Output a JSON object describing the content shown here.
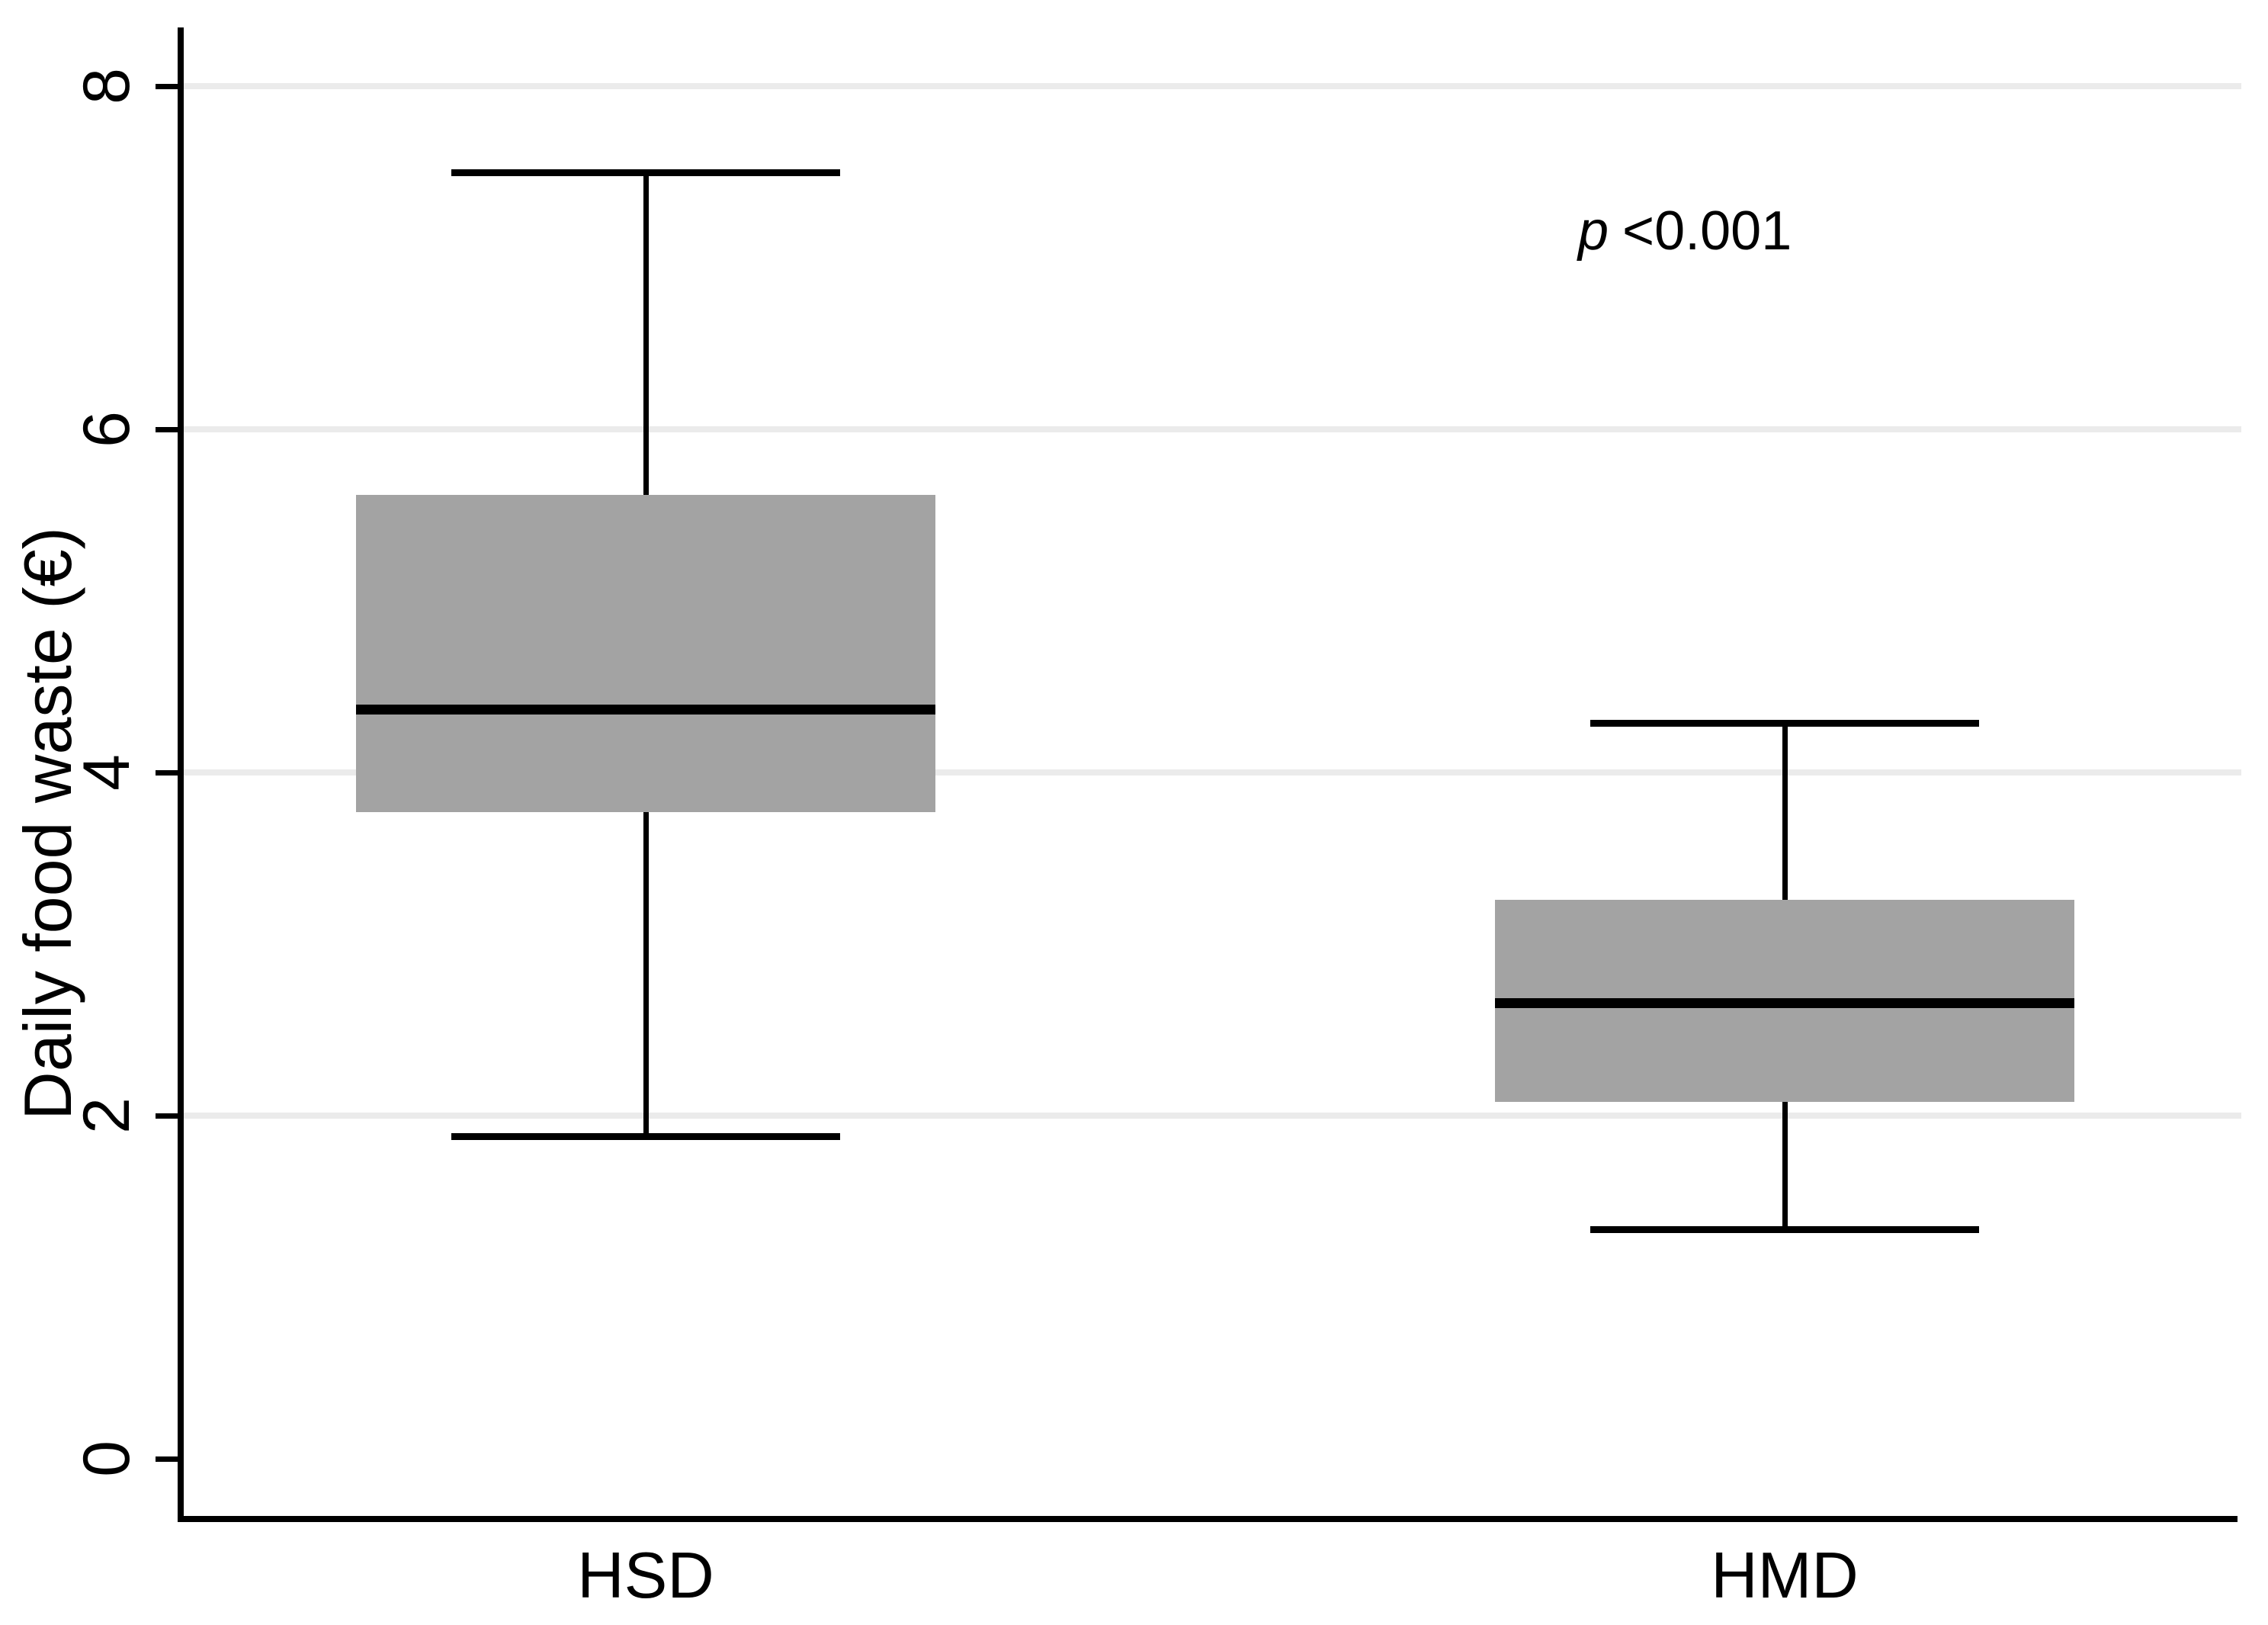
{
  "figure": {
    "y_axis_title": "Daily food waste (€)",
    "p_annotation": {
      "symbol": "p",
      "value": "<0.001"
    }
  },
  "chart_data": {
    "type": "box",
    "title": "",
    "xlabel": "",
    "ylabel": "Daily food waste (€)",
    "categories": [
      "HSD",
      "HMD"
    ],
    "ylim": [
      0,
      8.4
    ],
    "yticks": [
      0,
      2,
      4,
      6,
      8
    ],
    "ytick_labels": [
      "0",
      "2",
      "4",
      "6",
      "8"
    ],
    "grid": true,
    "gridline_values": [
      2,
      4,
      6,
      8
    ],
    "annotation": "p <0.001",
    "series": [
      {
        "name": "HSD",
        "whisker_low": 1.88,
        "q1": 3.77,
        "median": 4.37,
        "q3": 5.62,
        "whisker_high": 7.5
      },
      {
        "name": "HMD",
        "whisker_low": 1.34,
        "q1": 2.08,
        "median": 2.66,
        "q3": 3.26,
        "whisker_high": 4.29
      }
    ],
    "colors": {
      "box_fill": "#a3a3a3",
      "median": "#000000",
      "whisker": "#000000",
      "axis": "#000000",
      "gridline": "#ebebeb",
      "text": "#000000",
      "background": "#ffffff"
    }
  }
}
